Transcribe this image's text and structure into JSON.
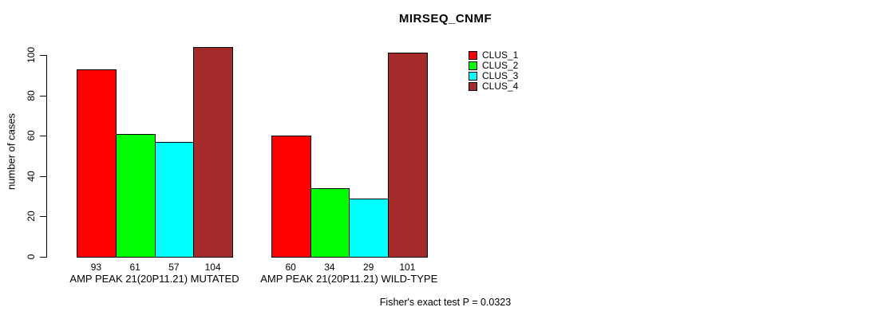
{
  "chart_data": {
    "type": "bar",
    "title": "MIRSEQ_CNMF",
    "ylabel": "number of cases",
    "xlabel": "",
    "yticks": [
      0,
      20,
      40,
      60,
      80,
      100
    ],
    "ylim": [
      0,
      107
    ],
    "grid": false,
    "legend_position": "top-right",
    "categories": [
      "AMP PEAK 21(20P11.21) MUTATED",
      "AMP PEAK 21(20P11.21) WILD-TYPE"
    ],
    "series": [
      {
        "name": "CLUS_1",
        "color": "#ff0000",
        "values": [
          93,
          60
        ]
      },
      {
        "name": "CLUS_2",
        "color": "#00ff00",
        "values": [
          61,
          34
        ]
      },
      {
        "name": "CLUS_3",
        "color": "#00ffff",
        "values": [
          57,
          29
        ]
      },
      {
        "name": "CLUS_4",
        "color": "#a52a2a",
        "values": [
          104,
          101
        ]
      }
    ],
    "bar_value_labels": [
      [
        93,
        61,
        57,
        104
      ],
      [
        60,
        34,
        29,
        101
      ]
    ],
    "annotation": "Fisher's exact test P = 0.0323"
  }
}
